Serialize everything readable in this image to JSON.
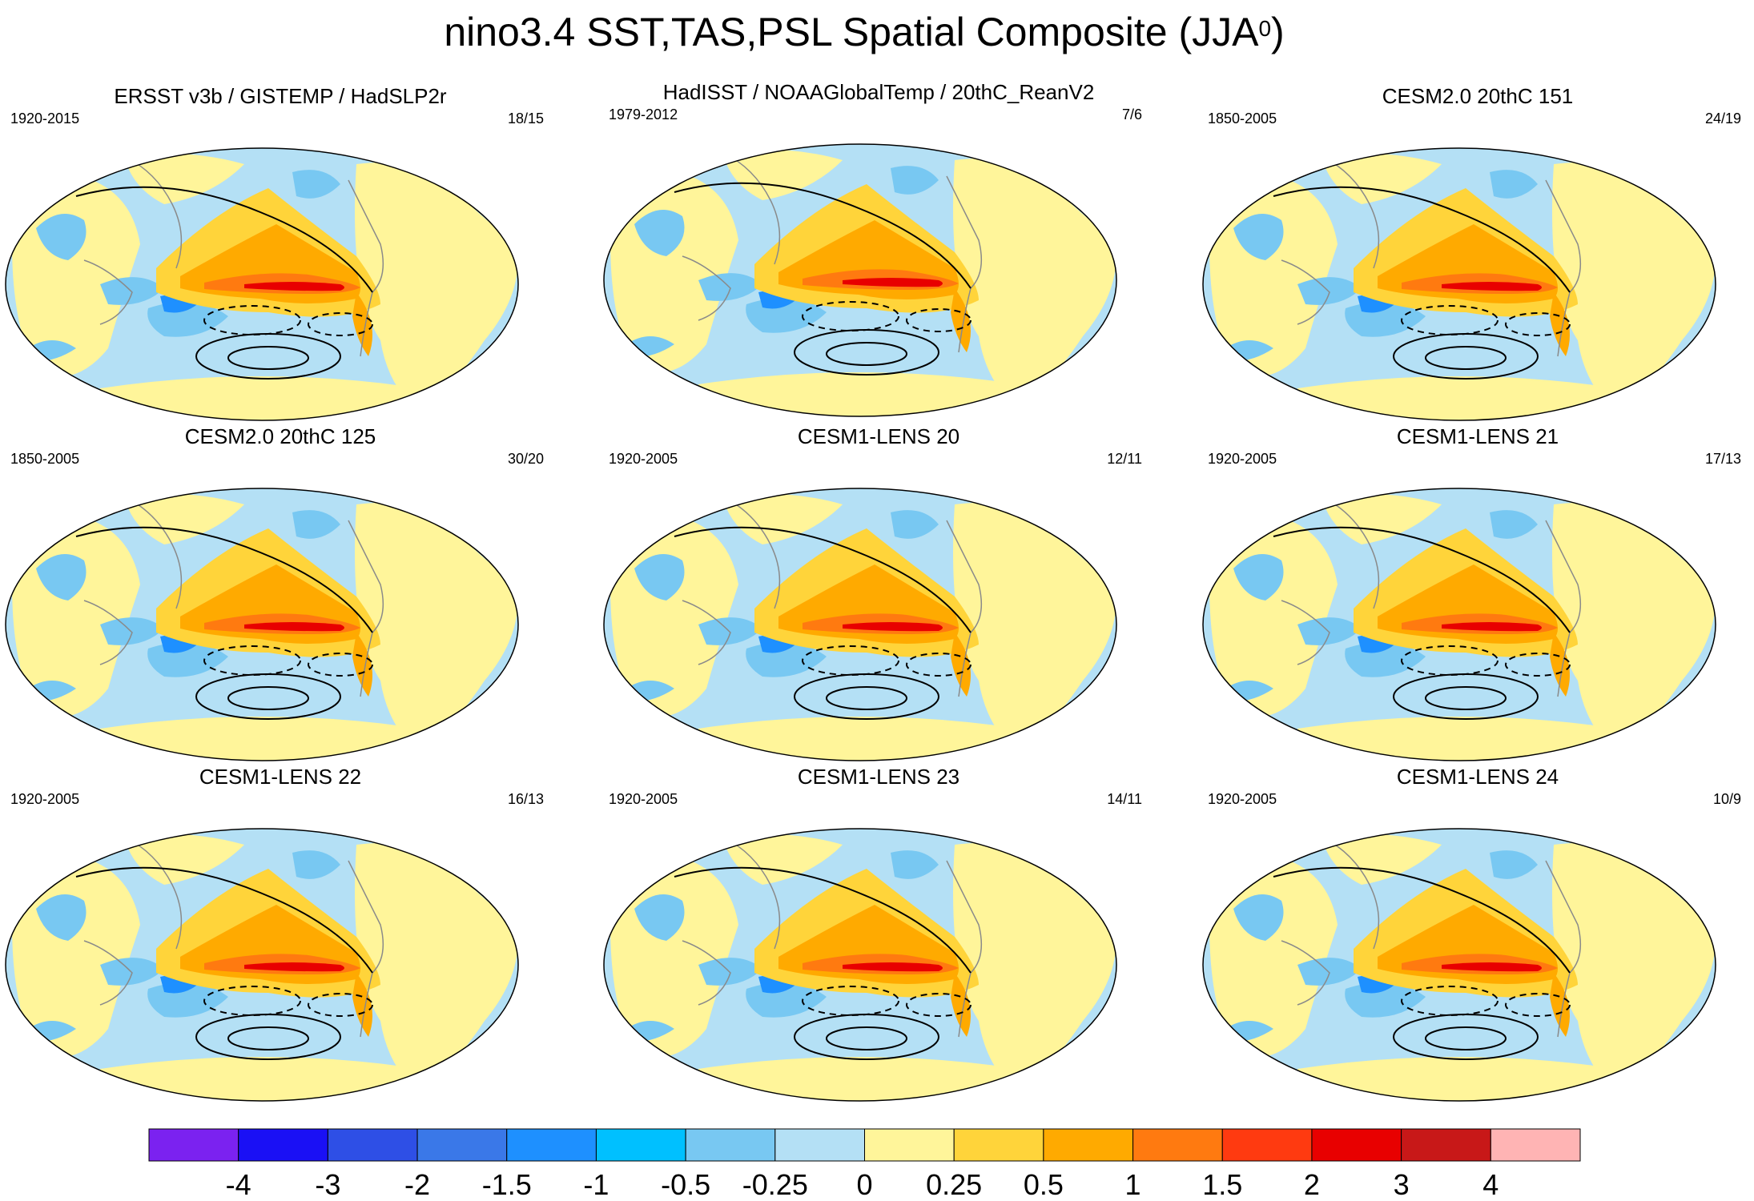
{
  "title": {
    "main": "nino3.4 SST,TAS,PSL Spatial Composite (JJA",
    "superscript": "0",
    "close": ")"
  },
  "panels": [
    {
      "title": "ERSST v3b / GISTEMP / HadSLP2r",
      "years": "1920-2015",
      "count": "18/15"
    },
    {
      "title": "HadISST / NOAAGlobalTemp / 20thC_ReanV2",
      "years": "1979-2012",
      "count": "7/6"
    },
    {
      "title": "CESM2.0 20thC 151",
      "years": "1850-2005",
      "count": "24/19"
    },
    {
      "title": "CESM2.0 20thC 125",
      "years": "1850-2005",
      "count": "30/20"
    },
    {
      "title": "CESM1-LENS 20",
      "years": "1920-2005",
      "count": "12/11"
    },
    {
      "title": "CESM1-LENS 21",
      "years": "1920-2005",
      "count": "17/13"
    },
    {
      "title": "CESM1-LENS 22",
      "years": "1920-2005",
      "count": "16/13"
    },
    {
      "title": "CESM1-LENS 23",
      "years": "1920-2005",
      "count": "14/11"
    },
    {
      "title": "CESM1-LENS 24",
      "years": "1920-2005",
      "count": "10/9"
    }
  ],
  "colorbar": {
    "labels": [
      "-4",
      "-3",
      "-2",
      "-1.5",
      "-1",
      "-0.5",
      "-0.25",
      "0",
      "0.25",
      "0.5",
      "1",
      "1.5",
      "2",
      "3",
      "4"
    ],
    "colors": [
      "#7b22f0",
      "#1a10f5",
      "#2e4fe6",
      "#3a78e8",
      "#1e90ff",
      "#00c0ff",
      "#78c8f2",
      "#b4e0f5",
      "#fff59a",
      "#ffd43a",
      "#ffaa00",
      "#ff7a10",
      "#ff3a10",
      "#e80000",
      "#c81818",
      "#ffb4b4"
    ]
  },
  "map_colors": {
    "ocean_base": "#b4e0f5",
    "land_base": "#fff59a",
    "warm1": "#ffd43a",
    "warm2": "#ffaa00",
    "warm3": "#ff7a10",
    "warm4": "#e80000",
    "cool1": "#78c8f2",
    "cool2": "#1e90ff",
    "cool3": "#2e4fe6",
    "coast": "#8a8a8a",
    "contour": "#000000"
  }
}
